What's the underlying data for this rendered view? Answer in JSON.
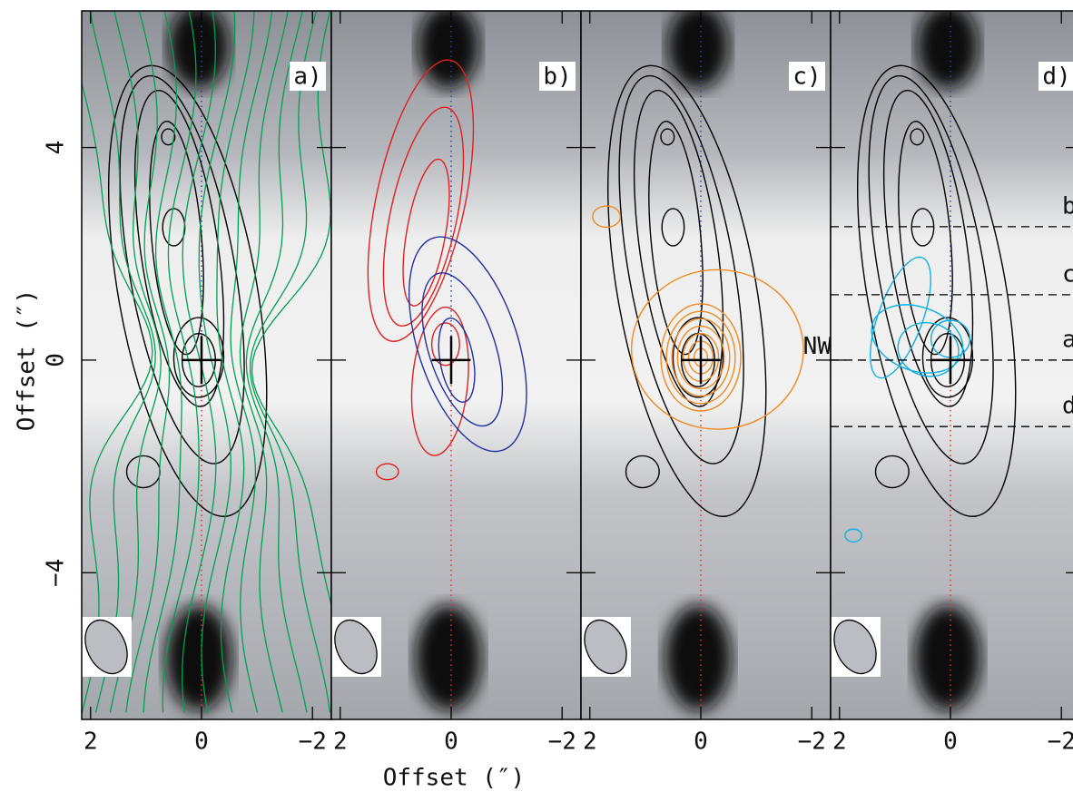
{
  "xlabel": "Offset (″)",
  "ylabel": "Offset (″)",
  "chart_data": [
    {
      "type": "contour",
      "label": "a)",
      "colors": [
        "#000000",
        "#00a050"
      ],
      "xlim": [
        2.16,
        -2.34
      ],
      "ylim": [
        -6.76,
        6.57
      ],
      "xticks": [
        2,
        0,
        {
          "value": -2,
          "label": "−2"
        }
      ],
      "yticks": [
        {
          "value": -4,
          "label": "−4"
        },
        0,
        4
      ]
    },
    {
      "type": "contour",
      "label": "b)",
      "colors": [
        "#e02020",
        "#2030a0"
      ],
      "xlim": [
        2.16,
        -2.34
      ],
      "ylim": [
        -6.76,
        6.57
      ],
      "xticks": [
        2,
        0,
        {
          "value": -2,
          "label": "−2"
        }
      ]
    },
    {
      "type": "contour",
      "label": "c)",
      "colors": [
        "#000000",
        "#f08a20"
      ],
      "xlim": [
        2.16,
        -2.34
      ],
      "ylim": [
        -6.76,
        6.57
      ],
      "xticks": [
        2,
        0,
        {
          "value": -2,
          "label": "−2"
        }
      ],
      "annotations": [
        {
          "text": "NW",
          "x": -2.1,
          "y": 0.25
        }
      ]
    },
    {
      "type": "contour",
      "label": "d)",
      "colors": [
        "#000000",
        "#10b0e0"
      ],
      "xlim": [
        2.16,
        -2.34
      ],
      "ylim": [
        -6.76,
        6.57
      ],
      "xticks": [
        2,
        0,
        {
          "value": -2,
          "label": "−2"
        }
      ],
      "annotations": [
        {
          "text": "b",
          "y": 2.51
        },
        {
          "text": "c",
          "y": 1.23
        },
        {
          "text": "a",
          "y": 0
        },
        {
          "text": "d",
          "y": -1.25
        }
      ]
    }
  ]
}
